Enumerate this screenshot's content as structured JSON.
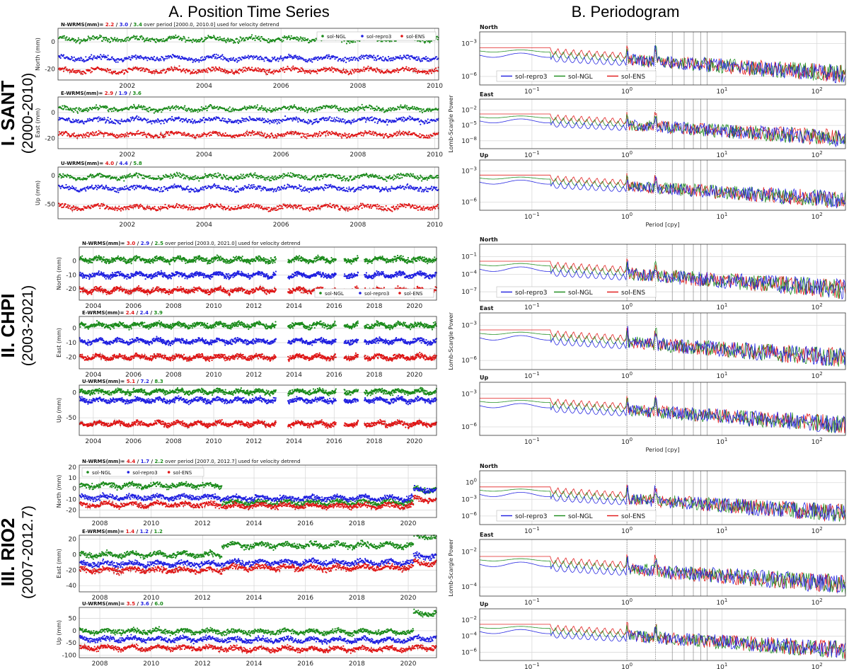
{
  "headers": {
    "left": "A. Position Time Series",
    "right": "B. Periodogram"
  },
  "colors": {
    "ngl": "#1a8a1a",
    "repro3": "#1f1fe0",
    "ens": "#e01515",
    "grid": "#d9d9d9"
  },
  "sections": [
    {
      "roman_name": "I. SANT",
      "years": "(2000-2010)"
    },
    {
      "roman_name": "II. CHPI",
      "years": "(2003-2021)"
    },
    {
      "roman_name": "III. RIO2",
      "years": "(2007-2012.7)"
    }
  ],
  "chart_data": [
    {
      "type": "scatter",
      "station": "SANT",
      "xlim": [
        2000.2,
        2010.1
      ],
      "xticks": [
        "2002",
        "2004",
        "2006",
        "2008",
        "2010"
      ],
      "legend": [
        "sol-NGL",
        "sol-repro3",
        "sol-ENS"
      ],
      "panels": [
        {
          "component": "N",
          "ylabel": "North (mm)",
          "ylim": [
            -28,
            10
          ],
          "yticks": [
            "0",
            "-20"
          ],
          "wrms_prefix": "N-WRMS(mm)=",
          "wrms": [
            "2.2",
            "3.0",
            "3.4"
          ],
          "note": "over period [2000.0, 2010.0] used for velocity detrend",
          "series": [
            {
              "name": "sol-NGL",
              "level": 2
            },
            {
              "name": "sol-repro3",
              "level": -12
            },
            {
              "name": "sol-ENS",
              "level": -21
            }
          ]
        },
        {
          "component": "E",
          "ylabel": "East (mm)",
          "ylim": [
            -28,
            12
          ],
          "yticks": [
            "0",
            "-20"
          ],
          "wrms_prefix": "E-WRMS(mm)=",
          "wrms": [
            "2.9",
            "1.9",
            "3.6"
          ],
          "series": [
            {
              "name": "sol-NGL",
              "level": 3
            },
            {
              "name": "sol-repro3",
              "level": -6
            },
            {
              "name": "sol-ENS",
              "level": -17
            }
          ]
        },
        {
          "component": "U",
          "ylabel": "Up (mm)",
          "ylim": [
            -75,
            15
          ],
          "yticks": [
            "0",
            "-50"
          ],
          "wrms_prefix": "U-WRMS(mm)=",
          "wrms": [
            "4.0",
            "4.4",
            "5.8"
          ],
          "series": [
            {
              "name": "sol-NGL",
              "level": -2
            },
            {
              "name": "sol-repro3",
              "level": -22
            },
            {
              "name": "sol-ENS",
              "level": -55
            }
          ]
        }
      ]
    },
    {
      "type": "scatter",
      "station": "CHPI",
      "xlim": [
        2003.3,
        2021.1
      ],
      "xticks": [
        "2004",
        "2006",
        "2008",
        "2010",
        "2012",
        "2014",
        "2016",
        "2018",
        "2020"
      ],
      "legend": [
        "sol-NGL",
        "sol-repro3",
        "sol-ENS"
      ],
      "gaps": [
        [
          2013.1,
          2013.7
        ],
        [
          2016.1,
          2016.5
        ],
        [
          2017.2,
          2017.5
        ]
      ],
      "panels": [
        {
          "component": "N",
          "ylabel": "North (mm)",
          "ylim": [
            -28,
            10
          ],
          "yticks": [
            "0",
            "-10",
            "-20"
          ],
          "wrms_prefix": "N-WRMS(mm)=",
          "wrms": [
            "3.0",
            "2.9",
            "2.5"
          ],
          "note": "over period [2003.0, 2021.0] used for velocity detrend",
          "series": [
            {
              "name": "sol-NGL",
              "level": 1
            },
            {
              "name": "sol-repro3",
              "level": -10
            },
            {
              "name": "sol-ENS",
              "level": -21
            }
          ]
        },
        {
          "component": "E",
          "ylabel": "East (mm)",
          "ylim": [
            -28,
            8
          ],
          "yticks": [
            "0",
            "-10",
            "-20"
          ],
          "wrms_prefix": "E-WRMS(mm)=",
          "wrms": [
            "2.4",
            "2.4",
            "3.9"
          ],
          "series": [
            {
              "name": "sol-NGL",
              "level": 2
            },
            {
              "name": "sol-repro3",
              "level": -9
            },
            {
              "name": "sol-ENS",
              "level": -20
            }
          ]
        },
        {
          "component": "U",
          "ylabel": "Up (mm)",
          "ylim": [
            -85,
            15
          ],
          "yticks": [
            "0",
            "-50"
          ],
          "wrms_prefix": "U-WRMS(mm)=",
          "wrms": [
            "5.1",
            "7.2",
            "8.3"
          ],
          "series": [
            {
              "name": "sol-NGL",
              "level": 2
            },
            {
              "name": "sol-repro3",
              "level": -15
            },
            {
              "name": "sol-ENS",
              "level": -62
            }
          ]
        }
      ]
    },
    {
      "type": "scatter",
      "station": "RIO2",
      "xlim": [
        2007.2,
        2021.1
      ],
      "xticks": [
        "2008",
        "2010",
        "2012",
        "2014",
        "2016",
        "2018",
        "2020"
      ],
      "legend": [
        "sol-NGL",
        "sol-repro3",
        "sol-ENS"
      ],
      "panels": [
        {
          "component": "N",
          "ylabel": "North (mm)",
          "ylim": [
            -27,
            22
          ],
          "yticks": [
            "20",
            "10",
            "0",
            "-10",
            "-20"
          ],
          "wrms_prefix": "N-WRMS(mm)=",
          "wrms": [
            "4.4",
            "1.7",
            "2.2"
          ],
          "note": "over period [2007.0, 2012.7] used for velocity detrend",
          "series": [
            {
              "name": "sol-NGL",
              "level": 3,
              "later": -13
            },
            {
              "name": "sol-repro3",
              "level": -8,
              "later": -9
            },
            {
              "name": "sol-ENS",
              "level": -15,
              "later": -16
            }
          ]
        },
        {
          "component": "E",
          "ylabel": "East (mm)",
          "ylim": [
            -48,
            25
          ],
          "yticks": [
            "20",
            "0",
            "-20",
            "-40"
          ],
          "wrms_prefix": "E-WRMS(mm)=",
          "wrms": [
            "1.4",
            "1.2",
            "1.2"
          ],
          "series": [
            {
              "name": "sol-NGL",
              "level": 0,
              "later": 12
            },
            {
              "name": "sol-repro3",
              "level": -12,
              "later": -10
            },
            {
              "name": "sol-ENS",
              "level": -20,
              "later": -17
            }
          ]
        },
        {
          "component": "U",
          "ylabel": "Up (mm)",
          "ylim": [
            -110,
            95
          ],
          "yticks": [
            "50",
            "0",
            "-50",
            "-100"
          ],
          "wrms_prefix": "U-WRMS(mm)=",
          "wrms": [
            "3.5",
            "3.6",
            "6.0"
          ],
          "series": [
            {
              "name": "sol-NGL",
              "level": -3,
              "later": -5
            },
            {
              "name": "sol-repro3",
              "level": -35,
              "later": -38
            },
            {
              "name": "sol-ENS",
              "level": -70,
              "later": -75
            }
          ]
        }
      ]
    },
    {
      "type": "line",
      "scale": "log-log",
      "station": "SANT",
      "xlabel": "Period [cpy]",
      "ylabel": "Lomb-Scargle Power",
      "xticks": [
        "10^-1",
        "10^0",
        "10^1",
        "10^2"
      ],
      "legend": [
        "sol-repro3",
        "sol-NGL",
        "sol-ENS"
      ],
      "panels": [
        {
          "title": "North",
          "yticks": [
            "10^-3",
            "10^-6"
          ]
        },
        {
          "title": "East",
          "yticks": [
            "10^-2",
            "10^-5",
            "10^-8"
          ]
        },
        {
          "title": "Up",
          "yticks": [
            "10^-3",
            "10^-6"
          ]
        }
      ]
    },
    {
      "type": "line",
      "scale": "log-log",
      "station": "CHPI",
      "xlabel": "Period [cpy]",
      "ylabel": "Lomb-Scargle Power",
      "xticks": [
        "10^-1",
        "10^0",
        "10^1",
        "10^2"
      ],
      "legend": [
        "sol-repro3",
        "sol-NGL",
        "sol-ENS"
      ],
      "panels": [
        {
          "title": "North",
          "yticks": [
            "10^-1",
            "10^-4",
            "10^-7"
          ]
        },
        {
          "title": "East",
          "yticks": [
            "10^-3",
            "10^-6"
          ]
        },
        {
          "title": "Up",
          "yticks": [
            "10^-3",
            "10^-6"
          ]
        }
      ]
    },
    {
      "type": "line",
      "scale": "log-log",
      "station": "RIO2",
      "xlabel": "Period [cpy]",
      "ylabel": "Lomb-Scargle Power",
      "xticks": [
        "10^-1",
        "10^0",
        "10^1",
        "10^2"
      ],
      "legend": [
        "sol-repro3",
        "sol-NGL",
        "sol-ENS"
      ],
      "panels": [
        {
          "title": "North",
          "yticks": [
            "10^0",
            "10^-3",
            "10^-6"
          ]
        },
        {
          "title": "East",
          "yticks": [
            "10^-2",
            "10^-4"
          ]
        },
        {
          "title": "Up",
          "yticks": [
            "10^-2",
            "10^-4",
            "10^-6"
          ]
        }
      ]
    }
  ]
}
